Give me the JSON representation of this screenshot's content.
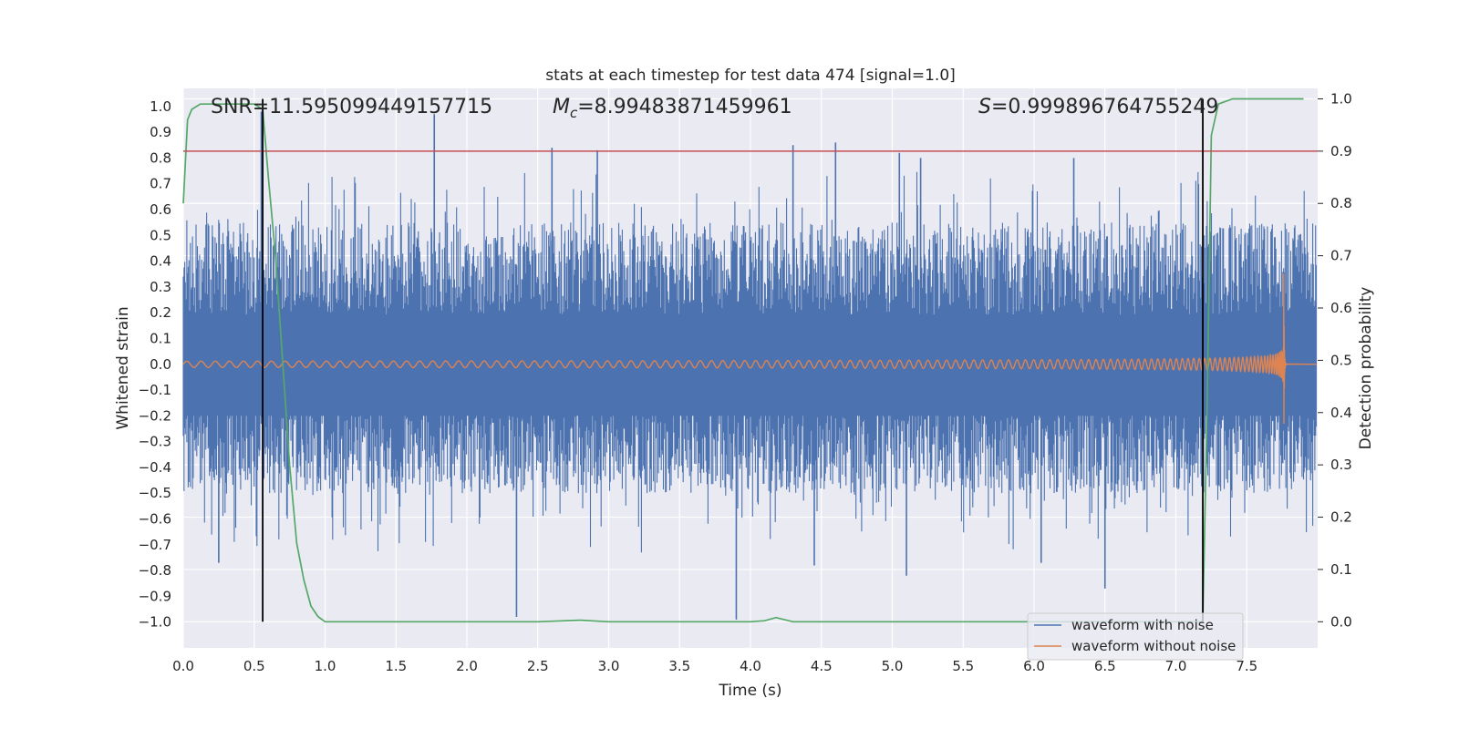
{
  "chart_data": {
    "type": "line",
    "title": "stats at each timestep for test data 474 [signal=1.0]",
    "xlabel": "Time (s)",
    "ylabel_left": "Whitened strain",
    "ylabel_right": "Detection probability",
    "xlim": [
      0.0,
      8.0
    ],
    "ylim_left": [
      -1.1,
      1.07
    ],
    "ylim_right": [
      -0.05,
      1.02
    ],
    "xticks": [
      0.0,
      0.5,
      1.0,
      1.5,
      2.0,
      2.5,
      3.0,
      3.5,
      4.0,
      4.5,
      5.0,
      5.5,
      6.0,
      6.5,
      7.0,
      7.5
    ],
    "xtick_labels": [
      "0.0",
      "0.5",
      "1.0",
      "1.5",
      "2.0",
      "2.5",
      "3.0",
      "3.5",
      "4.0",
      "4.5",
      "5.0",
      "5.5",
      "6.0",
      "6.5",
      "7.0",
      "7.5"
    ],
    "yticks_left": [
      1.0,
      0.9,
      0.8,
      0.7,
      0.6,
      0.5,
      0.4,
      0.3,
      0.2,
      0.1,
      0.0,
      -0.1,
      -0.2,
      -0.3,
      -0.4,
      -0.5,
      -0.6,
      -0.7,
      -0.8,
      -0.9,
      -1.0
    ],
    "ytick_labels_left": [
      "1.0",
      "0.9",
      "0.8",
      "0.7",
      "0.6",
      "0.5",
      "0.4",
      "0.3",
      "0.2",
      "0.1",
      "0.0",
      "−0.1",
      "−0.2",
      "−0.3",
      "−0.4",
      "−0.5",
      "−0.6",
      "−0.7",
      "−0.8",
      "−0.9",
      "−1.0"
    ],
    "yticks_right": [
      1.0,
      0.9,
      0.8,
      0.7,
      0.6,
      0.5,
      0.4,
      0.3,
      0.2,
      0.1,
      0.0
    ],
    "ytick_labels_right": [
      "1.0",
      "0.9",
      "0.8",
      "0.7",
      "0.6",
      "0.5",
      "0.4",
      "0.3",
      "0.2",
      "0.1",
      "0.0"
    ],
    "grid": true,
    "legend_position": "bottom-right",
    "annotations": {
      "snr": "SNR=11.595099449157715",
      "mc_symbol": "M",
      "mc_subscript": "c",
      "mc_value": "=8.99483871459961",
      "s_symbol": "S",
      "s_value": "=0.999896764755249"
    },
    "threshold_probability": 0.9,
    "vertical_markers": [
      0.56,
      7.19
    ],
    "series": [
      {
        "name": "waveform with noise",
        "axis": "left",
        "color": "#4c72b0",
        "envelope_upper": 0.55,
        "envelope_lower": -0.5,
        "spike_upper": [
          [
            0.55,
            0.98
          ],
          [
            1.77,
            0.97
          ],
          [
            2.6,
            0.84
          ],
          [
            2.92,
            0.83
          ],
          [
            4.3,
            0.85
          ],
          [
            4.6,
            0.86
          ],
          [
            5.05,
            0.82
          ],
          [
            5.2,
            0.8
          ],
          [
            6.28,
            0.8
          ]
        ],
        "spike_lower": [
          [
            0.25,
            -0.77
          ],
          [
            2.35,
            -0.98
          ],
          [
            3.9,
            -0.99
          ],
          [
            4.45,
            -0.78
          ],
          [
            5.1,
            -0.82
          ],
          [
            6.5,
            -0.87
          ],
          [
            6.05,
            -0.77
          ]
        ]
      },
      {
        "name": "waveform without noise",
        "axis": "left",
        "color": "#dd8452",
        "start_amplitude": 0.012,
        "peak_amplitude": 0.43,
        "peak_time": 7.76,
        "end_time": 7.78
      },
      {
        "name": "detection probability",
        "axis": "right",
        "color": "#55a868",
        "x": [
          0.0,
          0.03,
          0.06,
          0.12,
          0.2,
          0.3,
          0.4,
          0.5,
          0.56,
          0.6,
          0.65,
          0.7,
          0.75,
          0.8,
          0.85,
          0.9,
          0.95,
          1.0,
          1.5,
          2.0,
          2.5,
          2.8,
          3.0,
          3.5,
          4.0,
          4.1,
          4.18,
          4.3,
          4.5,
          5.0,
          6.0,
          7.0,
          7.19,
          7.22,
          7.25,
          7.3,
          7.4,
          7.5,
          7.6,
          7.7,
          7.9
        ],
        "y": [
          0.8,
          0.96,
          0.98,
          0.99,
          0.99,
          0.99,
          0.99,
          0.99,
          0.98,
          0.85,
          0.7,
          0.5,
          0.3,
          0.15,
          0.08,
          0.03,
          0.01,
          0.0,
          0.0,
          0.0,
          0.0,
          0.003,
          0.0,
          0.0,
          0.0,
          0.002,
          0.008,
          0.0,
          0.0,
          0.0,
          0.0,
          0.0,
          0.0,
          0.4,
          0.93,
          0.99,
          1.0,
          1.0,
          1.0,
          1.0,
          1.0
        ]
      }
    ],
    "threshold_color": "#c44e52"
  }
}
